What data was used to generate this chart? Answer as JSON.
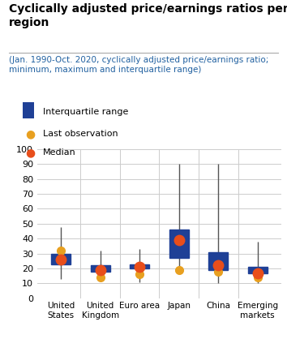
{
  "title": "Cyclically adjusted price/earnings ratios per\nregion",
  "subtitle": "(Jan. 1990-Oct. 2020, cyclically adjusted price/earnings ratio;\nminimum, maximum and interquartile range)",
  "categories": [
    "United\nStates",
    "United\nKingdom",
    "Euro area",
    "Japan",
    "China",
    "Emerging\nmarkets"
  ],
  "box_low": [
    23,
    18,
    20,
    27,
    19,
    17
  ],
  "box_high": [
    30,
    22,
    23,
    46,
    31,
    21
  ],
  "whisker_low": [
    13,
    13,
    11,
    19,
    10,
    10
  ],
  "whisker_high": [
    48,
    32,
    33,
    90,
    90,
    38
  ],
  "median": [
    26,
    19,
    21,
    39,
    22,
    17
  ],
  "last_obs": [
    32,
    14,
    16,
    19,
    18,
    14
  ],
  "box_color": "#1f4096",
  "median_color": "#e84e1b",
  "last_obs_color": "#e8a020",
  "whisker_color": "#555555",
  "ylim": [
    0,
    100
  ],
  "yticks": [
    0,
    10,
    20,
    30,
    40,
    50,
    60,
    70,
    80,
    90,
    100
  ],
  "title_color": "#000000",
  "subtitle_color": "#2060a0",
  "background_color": "#ffffff",
  "grid_color": "#cccccc",
  "title_fontsize": 10,
  "subtitle_fontsize": 7.5,
  "legend_fontsize": 8,
  "tick_fontsize": 8,
  "xtick_fontsize": 7.5
}
